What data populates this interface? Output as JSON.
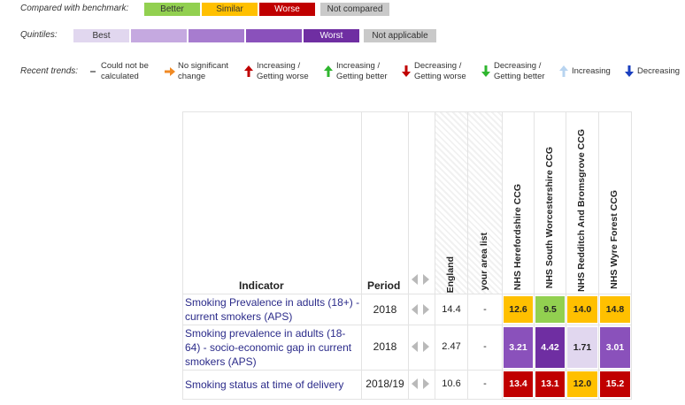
{
  "legend": {
    "benchmark_label": "Compared with benchmark:",
    "benchmark": [
      {
        "label": "Better",
        "bg": "#92d050",
        "fg": "#333333"
      },
      {
        "label": "Similar",
        "bg": "#ffc000",
        "fg": "#333333"
      },
      {
        "label": "Worse",
        "bg": "#c00000",
        "fg": "#ffffff"
      },
      {
        "label": "Not compared",
        "bg": "#c9c9c9",
        "fg": "#333333"
      }
    ],
    "quintiles_label": "Quintiles:",
    "quintiles": [
      {
        "label": "Best",
        "bg": "#e1d7ef"
      },
      {
        "label": "",
        "bg": "#c5a9e0"
      },
      {
        "label": "",
        "bg": "#a77ccf"
      },
      {
        "label": "",
        "bg": "#8a51bb"
      },
      {
        "label": "Worst",
        "bg": "#6f2ea2",
        "fg": "#ffffff"
      },
      {
        "label": "Not applicable",
        "bg": "#c9c9c9"
      }
    ],
    "trends_label": "Recent trends:",
    "trends": [
      {
        "label1": "Could not be",
        "label2": "calculated",
        "icon": "dash-icon",
        "color": "#888888"
      },
      {
        "label1": "No significant",
        "label2": "change",
        "icon": "arrow-right-icon",
        "color": "#f08a24"
      },
      {
        "label1": "Increasing /",
        "label2": "Getting worse",
        "icon": "arrow-up-icon",
        "color": "#c00000"
      },
      {
        "label1": "Increasing /",
        "label2": "Getting better",
        "icon": "arrow-up-icon",
        "color": "#2fb62f"
      },
      {
        "label1": "Decreasing /",
        "label2": "Getting worse",
        "icon": "arrow-down-icon",
        "color": "#c00000"
      },
      {
        "label1": "Decreasing /",
        "label2": "Getting better",
        "icon": "arrow-down-icon",
        "color": "#2fb62f"
      },
      {
        "label1": "Increasing",
        "label2": "",
        "icon": "arrow-up-icon",
        "color": "#b8d4f0"
      },
      {
        "label1": "Decreasing",
        "label2": "",
        "icon": "arrow-down-icon",
        "color": "#1a3fbf"
      }
    ]
  },
  "table": {
    "col_indicator": "Indicator",
    "col_period": "Period",
    "col_england": "England",
    "col_area_list": "your area list",
    "areas": [
      "NHS Herefordshire CCG",
      "NHS South Worcestershire CCG",
      "NHS Redditch And Bromsgrove CCG",
      "NHS Wyre Forest CCG"
    ],
    "rows": [
      {
        "indicator": "Smoking Prevalence in adults (18+) - current smokers (APS)",
        "period": "2018",
        "england": "14.4",
        "area_list": "-",
        "values": [
          {
            "v": "12.6",
            "bg": "#ffc000",
            "fg": "#222222"
          },
          {
            "v": "9.5",
            "bg": "#92d050",
            "fg": "#222222"
          },
          {
            "v": "14.0",
            "bg": "#ffc000",
            "fg": "#222222"
          },
          {
            "v": "14.8",
            "bg": "#ffc000",
            "fg": "#222222"
          }
        ]
      },
      {
        "indicator": "Smoking prevalence in adults (18-64) - socio-economic gap in current smokers (APS)",
        "period": "2018",
        "england": "2.47",
        "area_list": "-",
        "values": [
          {
            "v": "3.21",
            "bg": "#8a51bb",
            "fg": "#ffffff"
          },
          {
            "v": "4.42",
            "bg": "#6f2ea2",
            "fg": "#ffffff"
          },
          {
            "v": "1.71",
            "bg": "#e1d7ef",
            "fg": "#222222"
          },
          {
            "v": "3.01",
            "bg": "#8a51bb",
            "fg": "#ffffff"
          }
        ]
      },
      {
        "indicator": "Smoking status at time of delivery",
        "period": "2018/19",
        "england": "10.6",
        "area_list": "-",
        "values": [
          {
            "v": "13.4",
            "bg": "#c00000",
            "fg": "#ffffff"
          },
          {
            "v": "13.1",
            "bg": "#c00000",
            "fg": "#ffffff"
          },
          {
            "v": "12.0",
            "bg": "#ffc000",
            "fg": "#222222"
          },
          {
            "v": "15.2",
            "bg": "#c00000",
            "fg": "#ffffff"
          }
        ]
      }
    ]
  }
}
